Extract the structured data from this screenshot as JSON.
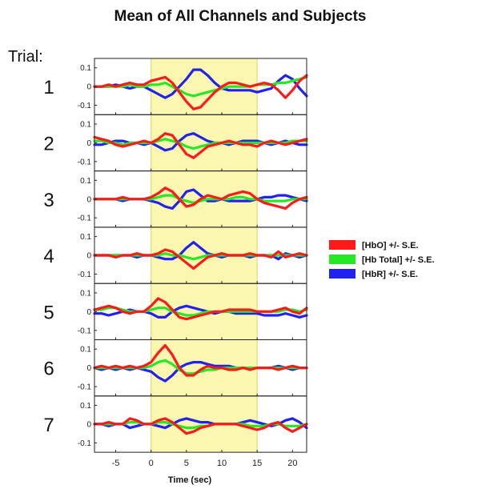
{
  "chart_data": {
    "type": "line",
    "title": "Mean of All Channels and Subjects",
    "row_label": "Trial:",
    "xlabel": "Time (sec)",
    "xlim": [
      -8,
      22
    ],
    "ylim": [
      -0.15,
      0.15
    ],
    "x_ticks": [
      -5,
      0,
      5,
      10,
      15,
      20
    ],
    "y_ticks": [
      0.1,
      0,
      -0.1
    ],
    "y_tick_labels": [
      "0.1",
      "0",
      "-0.1"
    ],
    "stimulus_window": [
      0,
      15
    ],
    "stimulus_color": "#fbf6b0",
    "colors": {
      "HbO": "#ff1a1a",
      "HbTotal": "#27e827",
      "HbR": "#2222ee"
    },
    "legend": [
      {
        "key": "HbO",
        "label": "[HbO] +/- S.E."
      },
      {
        "key": "HbTotal",
        "label": "[Hb Total] +/- S.E."
      },
      {
        "key": "HbR",
        "label": "[HbR] +/- S.E."
      }
    ],
    "x": [
      -8,
      -7,
      -6,
      -5,
      -4,
      -3,
      -2,
      -1,
      0,
      1,
      2,
      3,
      4,
      5,
      6,
      7,
      8,
      9,
      10,
      11,
      12,
      13,
      14,
      15,
      16,
      17,
      18,
      19,
      20,
      21,
      22
    ],
    "trials": [
      {
        "label": "1",
        "HbO": [
          0.0,
          0.0,
          0.01,
          0.0,
          0.01,
          0.02,
          0.01,
          0.01,
          0.03,
          0.04,
          0.05,
          0.02,
          -0.03,
          -0.08,
          -0.12,
          -0.11,
          -0.07,
          -0.03,
          0.0,
          0.02,
          0.02,
          0.01,
          0.0,
          0.01,
          0.02,
          0.01,
          -0.02,
          -0.06,
          -0.02,
          0.03,
          0.06
        ],
        "HbTotal": [
          0.0,
          0.0,
          0.0,
          0.0,
          0.0,
          0.01,
          0.0,
          0.0,
          0.01,
          0.01,
          0.02,
          0.0,
          -0.02,
          -0.04,
          -0.05,
          -0.04,
          -0.03,
          -0.02,
          -0.01,
          0.0,
          0.0,
          0.0,
          0.0,
          0.01,
          0.01,
          0.01,
          0.02,
          0.02,
          0.03,
          0.04,
          0.05
        ],
        "HbR": [
          0.0,
          0.0,
          0.0,
          0.01,
          0.0,
          -0.01,
          0.0,
          0.0,
          -0.02,
          -0.04,
          -0.06,
          -0.04,
          0.0,
          0.04,
          0.09,
          0.09,
          0.06,
          0.02,
          -0.01,
          -0.02,
          -0.02,
          -0.02,
          -0.02,
          -0.03,
          -0.02,
          -0.01,
          0.03,
          0.06,
          0.04,
          -0.01,
          -0.05
        ]
      },
      {
        "label": "2",
        "HbO": [
          0.03,
          0.02,
          0.01,
          -0.01,
          -0.02,
          -0.01,
          0.0,
          0.01,
          0.0,
          0.02,
          0.05,
          0.04,
          -0.01,
          -0.06,
          -0.08,
          -0.05,
          -0.02,
          -0.01,
          0.0,
          0.01,
          0.0,
          -0.01,
          -0.01,
          -0.02,
          0.0,
          0.01,
          0.0,
          -0.01,
          0.0,
          0.01,
          0.02
        ],
        "HbTotal": [
          0.01,
          0.01,
          0.0,
          0.0,
          -0.01,
          0.0,
          0.0,
          0.0,
          0.0,
          0.01,
          0.02,
          0.01,
          0.0,
          -0.02,
          -0.03,
          -0.02,
          -0.01,
          0.0,
          0.0,
          0.0,
          0.0,
          0.0,
          0.0,
          0.0,
          0.0,
          0.0,
          0.0,
          0.0,
          0.01,
          0.01,
          0.01
        ],
        "HbR": [
          -0.01,
          -0.01,
          0.0,
          0.01,
          0.01,
          0.0,
          0.0,
          -0.01,
          0.0,
          -0.02,
          -0.04,
          -0.03,
          0.01,
          0.04,
          0.05,
          0.03,
          0.01,
          0.0,
          0.0,
          -0.01,
          0.0,
          0.01,
          0.01,
          0.01,
          0.0,
          -0.01,
          0.0,
          0.01,
          0.0,
          -0.01,
          -0.01
        ]
      },
      {
        "label": "3",
        "HbO": [
          0.0,
          0.0,
          0.0,
          0.0,
          0.01,
          0.0,
          0.0,
          0.0,
          0.01,
          0.03,
          0.06,
          0.04,
          0.0,
          -0.04,
          -0.03,
          0.0,
          0.02,
          0.01,
          0.0,
          0.02,
          0.03,
          0.04,
          0.03,
          0.0,
          -0.02,
          -0.03,
          -0.04,
          -0.05,
          -0.02,
          0.0,
          0.01
        ],
        "HbTotal": [
          0.0,
          0.0,
          0.0,
          0.0,
          0.0,
          0.0,
          0.0,
          0.0,
          0.0,
          0.01,
          0.02,
          0.02,
          0.0,
          -0.01,
          -0.02,
          -0.01,
          0.0,
          0.0,
          0.0,
          0.0,
          0.01,
          0.01,
          0.0,
          0.0,
          -0.01,
          -0.01,
          -0.01,
          -0.01,
          0.0,
          0.0,
          0.0
        ],
        "HbR": [
          0.0,
          0.0,
          0.0,
          0.0,
          -0.01,
          0.0,
          0.0,
          0.0,
          -0.01,
          -0.02,
          -0.04,
          -0.05,
          -0.01,
          0.04,
          0.05,
          0.02,
          -0.01,
          -0.01,
          0.0,
          -0.01,
          -0.01,
          -0.01,
          -0.01,
          0.0,
          0.01,
          0.01,
          0.02,
          0.02,
          0.01,
          0.0,
          -0.01
        ]
      },
      {
        "label": "4",
        "HbO": [
          0.0,
          0.0,
          0.0,
          -0.01,
          0.0,
          0.0,
          0.01,
          0.0,
          0.0,
          0.01,
          0.03,
          0.02,
          -0.01,
          -0.04,
          -0.07,
          -0.04,
          -0.01,
          0.0,
          0.01,
          0.0,
          0.0,
          0.0,
          0.01,
          0.0,
          0.0,
          -0.01,
          0.02,
          -0.01,
          0.0,
          0.01,
          0.0
        ],
        "HbTotal": [
          0.0,
          0.0,
          0.0,
          0.0,
          0.0,
          0.0,
          0.0,
          0.0,
          0.0,
          0.0,
          0.01,
          0.0,
          0.0,
          -0.01,
          -0.02,
          -0.01,
          0.0,
          0.0,
          0.0,
          0.0,
          0.0,
          0.0,
          0.0,
          0.0,
          0.0,
          0.0,
          0.0,
          0.0,
          0.0,
          0.0,
          0.0
        ],
        "HbR": [
          0.0,
          0.0,
          0.0,
          0.0,
          0.0,
          0.0,
          -0.01,
          0.0,
          0.0,
          -0.01,
          -0.02,
          -0.02,
          0.0,
          0.04,
          0.07,
          0.04,
          0.01,
          0.0,
          -0.01,
          0.0,
          0.0,
          0.0,
          -0.01,
          0.0,
          0.0,
          0.0,
          -0.02,
          0.01,
          0.0,
          -0.01,
          0.0
        ]
      },
      {
        "label": "5",
        "HbO": [
          0.01,
          0.02,
          0.03,
          0.02,
          0.0,
          -0.01,
          0.0,
          0.0,
          0.03,
          0.07,
          0.05,
          0.01,
          -0.03,
          -0.04,
          -0.03,
          -0.02,
          -0.01,
          0.0,
          0.0,
          0.01,
          0.01,
          0.01,
          0.01,
          0.0,
          0.0,
          0.0,
          0.01,
          0.02,
          0.0,
          -0.01,
          0.02
        ],
        "HbTotal": [
          0.01,
          0.01,
          0.02,
          0.02,
          0.01,
          0.0,
          0.0,
          0.0,
          0.01,
          0.02,
          0.02,
          0.0,
          -0.01,
          -0.02,
          -0.02,
          -0.01,
          0.0,
          0.0,
          0.0,
          0.0,
          0.0,
          0.0,
          0.0,
          0.0,
          0.0,
          0.0,
          0.0,
          0.01,
          0.01,
          0.0,
          0.01
        ],
        "HbR": [
          -0.01,
          -0.01,
          -0.02,
          -0.01,
          0.0,
          0.01,
          0.0,
          0.0,
          -0.01,
          -0.03,
          -0.03,
          0.0,
          0.02,
          0.03,
          0.02,
          0.01,
          0.0,
          -0.01,
          0.0,
          0.0,
          -0.01,
          -0.01,
          -0.01,
          -0.01,
          -0.02,
          -0.02,
          -0.02,
          -0.01,
          -0.02,
          -0.03,
          -0.02
        ]
      },
      {
        "label": "6",
        "HbO": [
          0.0,
          0.01,
          0.0,
          0.01,
          0.0,
          0.01,
          0.0,
          0.01,
          0.03,
          0.08,
          0.12,
          0.07,
          0.0,
          -0.04,
          -0.04,
          -0.01,
          0.01,
          0.0,
          0.0,
          -0.01,
          -0.01,
          0.0,
          -0.01,
          0.0,
          0.0,
          0.0,
          -0.01,
          0.0,
          0.01,
          0.0,
          0.0
        ],
        "HbTotal": [
          0.0,
          0.0,
          0.0,
          0.0,
          0.0,
          0.0,
          0.0,
          0.0,
          0.01,
          0.03,
          0.04,
          0.02,
          -0.01,
          -0.03,
          -0.03,
          -0.02,
          -0.01,
          -0.01,
          0.0,
          0.0,
          0.0,
          0.0,
          0.0,
          0.0,
          0.0,
          0.0,
          0.0,
          0.0,
          0.0,
          0.0,
          0.0
        ],
        "HbR": [
          0.0,
          -0.01,
          0.0,
          -0.01,
          0.0,
          -0.01,
          0.0,
          -0.01,
          -0.02,
          -0.05,
          -0.07,
          -0.04,
          0.0,
          0.02,
          0.03,
          0.03,
          0.02,
          0.01,
          0.01,
          0.01,
          0.0,
          0.0,
          0.0,
          0.0,
          0.0,
          0.0,
          0.01,
          0.0,
          -0.01,
          0.0,
          0.0
        ]
      },
      {
        "label": "7",
        "HbO": [
          0.0,
          0.0,
          0.01,
          0.0,
          0.0,
          0.03,
          0.02,
          0.0,
          0.0,
          0.02,
          0.03,
          0.01,
          -0.02,
          -0.05,
          -0.04,
          -0.02,
          -0.01,
          0.0,
          0.0,
          0.0,
          0.0,
          -0.01,
          -0.02,
          -0.03,
          -0.02,
          0.0,
          0.01,
          -0.02,
          -0.04,
          -0.02,
          0.0
        ],
        "HbTotal": [
          0.0,
          0.0,
          0.0,
          0.0,
          0.0,
          0.01,
          0.01,
          0.0,
          0.0,
          0.01,
          0.01,
          0.0,
          -0.01,
          -0.02,
          -0.02,
          -0.01,
          -0.01,
          0.0,
          0.0,
          0.0,
          0.0,
          0.0,
          -0.01,
          -0.01,
          -0.01,
          0.0,
          0.0,
          -0.01,
          -0.01,
          -0.01,
          0.0
        ],
        "HbR": [
          0.0,
          0.0,
          -0.01,
          0.0,
          0.0,
          -0.02,
          -0.01,
          0.0,
          0.0,
          -0.01,
          -0.02,
          0.0,
          0.02,
          0.03,
          0.02,
          0.01,
          0.01,
          0.0,
          0.0,
          0.0,
          0.0,
          0.01,
          0.02,
          0.01,
          0.0,
          -0.01,
          0.0,
          0.02,
          0.03,
          0.01,
          -0.02
        ]
      }
    ]
  }
}
